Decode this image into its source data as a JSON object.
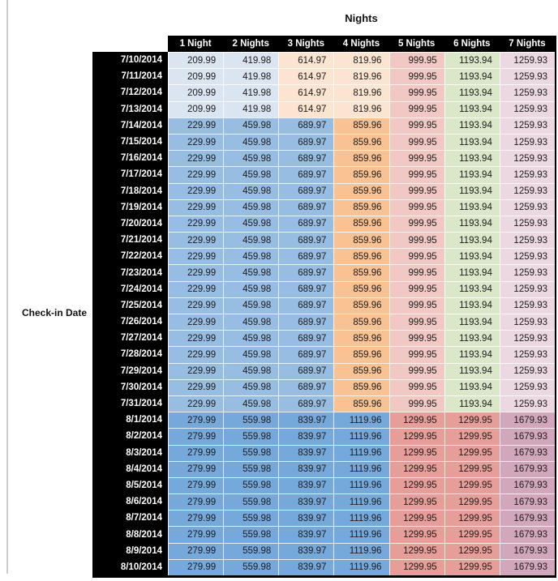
{
  "chart_data": {
    "type": "table",
    "title": "Nights",
    "row_axis_label": "Check-in Date",
    "columns": [
      "1 Night",
      "2 Nights",
      "3 Nights",
      "4 Nights",
      "5 Nights",
      "6 Nights",
      "7 Nights"
    ],
    "price_bands": [
      {
        "name": "early-july",
        "row_dates": [
          "7/10/2014",
          "7/11/2014",
          "7/12/2014",
          "7/13/2014"
        ],
        "prices": [
          "209.99",
          "419.98",
          "614.97",
          "819.96",
          "999.95",
          "1193.94",
          "1259.93"
        ],
        "cell_colors": [
          "#dbe5f1",
          "#dbe5f1",
          "#fce5d0",
          "#fce5d0",
          "#f1c8c4",
          "#dbe7c9",
          "#ebd8e0"
        ]
      },
      {
        "name": "mid-late-july",
        "row_dates": [
          "7/14/2014",
          "7/15/2014",
          "7/16/2014",
          "7/17/2014",
          "7/18/2014",
          "7/19/2014",
          "7/20/2014",
          "7/21/2014",
          "7/22/2014",
          "7/23/2014",
          "7/24/2014",
          "7/25/2014",
          "7/26/2014",
          "7/27/2014",
          "7/28/2014",
          "7/29/2014",
          "7/30/2014",
          "7/31/2014"
        ],
        "prices": [
          "229.99",
          "459.98",
          "689.97",
          "859.96",
          "999.95",
          "1193.94",
          "1259.93"
        ],
        "cell_colors": [
          "#98bde2",
          "#98bde2",
          "#98bde2",
          "#f8c292",
          "#f1c8c4",
          "#dbe7c9",
          "#ebd8e0"
        ]
      },
      {
        "name": "august",
        "row_dates": [
          "8/1/2014",
          "8/2/2014",
          "8/3/2014",
          "8/4/2014",
          "8/5/2014",
          "8/6/2014",
          "8/7/2014",
          "8/8/2014",
          "8/9/2014",
          "8/10/2014"
        ],
        "prices": [
          "279.99",
          "559.98",
          "839.97",
          "1119.96",
          "1299.95",
          "1299.95",
          "1679.93"
        ],
        "cell_colors": [
          "#76a9db",
          "#76a9db",
          "#76a9db",
          "#76a9db",
          "#e89e98",
          "#e89e98",
          "#d2a6bb"
        ]
      }
    ]
  },
  "style": {
    "header_bg": "#000000",
    "header_text": "#ffffff",
    "date_bg": "#000000",
    "date_text": "#ffffff",
    "value_text": "#1c1c1c",
    "left_rule": "#cccccc"
  }
}
